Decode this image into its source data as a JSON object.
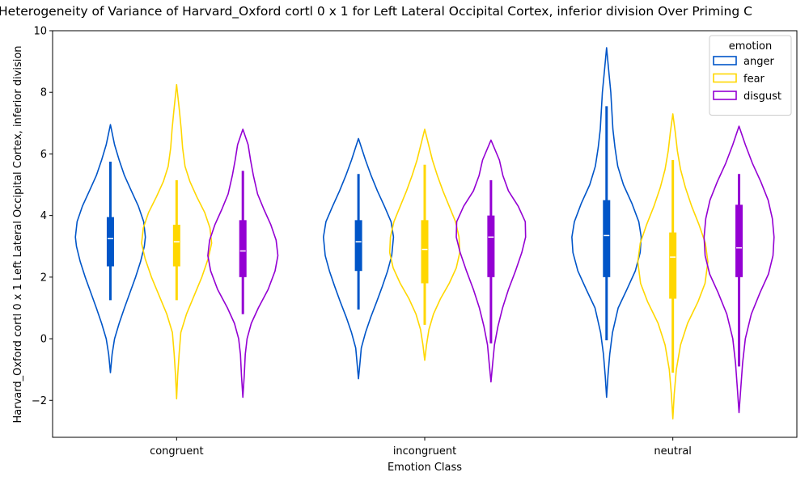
{
  "chart_data": {
    "type": "violin",
    "title": "Heterogeneity of Variance of Harvard_Oxford cortl 0 x 1 for Left Lateral Occipital Cortex, inferior division Over Priming C",
    "xlabel": "Emotion Class",
    "ylabel": "Harvard_Oxford cortl 0 x 1 Left Lateral Occipital Cortex, inferior division",
    "ylim": [
      -3.2,
      10
    ],
    "yticks": [
      "−2",
      "0",
      "2",
      "4",
      "6",
      "8",
      "10"
    ],
    "categories": [
      "congruent",
      "incongruent",
      "neutral"
    ],
    "grid": false,
    "legend": {
      "title": "emotion",
      "position": "top-right"
    },
    "series": [
      {
        "name": "anger",
        "color": "#0055c8",
        "violins": [
          {
            "min": -1.1,
            "max": 6.95,
            "whisker_low": 1.25,
            "whisker_high": 5.75,
            "q1": 2.35,
            "median": 3.25,
            "q3": 3.95,
            "profile": [
              [
                -1.1,
                0
              ],
              [
                -0.5,
                0.05
              ],
              [
                0,
                0.12
              ],
              [
                0.5,
                0.25
              ],
              [
                1,
                0.4
              ],
              [
                1.5,
                0.56
              ],
              [
                2,
                0.72
              ],
              [
                2.5,
                0.86
              ],
              [
                3,
                0.97
              ],
              [
                3.3,
                1
              ],
              [
                3.8,
                0.95
              ],
              [
                4.3,
                0.8
              ],
              [
                4.8,
                0.6
              ],
              [
                5.3,
                0.4
              ],
              [
                5.8,
                0.25
              ],
              [
                6.3,
                0.12
              ],
              [
                6.95,
                0
              ]
            ]
          },
          {
            "min": -1.3,
            "max": 6.5,
            "whisker_low": 0.95,
            "whisker_high": 5.35,
            "q1": 2.2,
            "median": 3.15,
            "q3": 3.85,
            "profile": [
              [
                -1.3,
                0
              ],
              [
                -0.8,
                0.04
              ],
              [
                -0.3,
                0.08
              ],
              [
                0.2,
                0.2
              ],
              [
                0.7,
                0.35
              ],
              [
                1.2,
                0.52
              ],
              [
                1.7,
                0.68
              ],
              [
                2.2,
                0.83
              ],
              [
                2.7,
                0.95
              ],
              [
                3.3,
                1
              ],
              [
                3.8,
                0.93
              ],
              [
                4.3,
                0.74
              ],
              [
                4.8,
                0.54
              ],
              [
                5.3,
                0.36
              ],
              [
                5.8,
                0.2
              ],
              [
                6.5,
                0
              ]
            ]
          },
          {
            "min": -1.9,
            "max": 9.45,
            "whisker_low": -0.05,
            "whisker_high": 7.55,
            "q1": 2.0,
            "median": 3.35,
            "q3": 4.5,
            "profile": [
              [
                -1.9,
                0
              ],
              [
                -1.2,
                0.04
              ],
              [
                -0.5,
                0.09
              ],
              [
                0.2,
                0.17
              ],
              [
                1,
                0.33
              ],
              [
                1.6,
                0.58
              ],
              [
                2.2,
                0.82
              ],
              [
                2.8,
                0.96
              ],
              [
                3.3,
                0.99
              ],
              [
                3.8,
                0.92
              ],
              [
                4.4,
                0.72
              ],
              [
                5,
                0.48
              ],
              [
                5.6,
                0.32
              ],
              [
                6.2,
                0.24
              ],
              [
                6.8,
                0.18
              ],
              [
                7.4,
                0.15
              ],
              [
                8,
                0.12
              ],
              [
                8.6,
                0.07
              ],
              [
                9.45,
                0
              ]
            ]
          }
        ]
      },
      {
        "name": "fear",
        "color": "#ffd700",
        "violins": [
          {
            "min": -1.95,
            "max": 8.25,
            "whisker_low": 1.25,
            "whisker_high": 5.15,
            "q1": 2.35,
            "median": 3.15,
            "q3": 3.7,
            "profile": [
              [
                -1.95,
                0
              ],
              [
                -1.2,
                0.03
              ],
              [
                -0.5,
                0.07
              ],
              [
                0.2,
                0.12
              ],
              [
                0.8,
                0.28
              ],
              [
                1.4,
                0.5
              ],
              [
                2,
                0.72
              ],
              [
                2.6,
                0.9
              ],
              [
                3.1,
                1
              ],
              [
                3.6,
                0.95
              ],
              [
                4.1,
                0.8
              ],
              [
                4.6,
                0.58
              ],
              [
                5.1,
                0.38
              ],
              [
                5.6,
                0.24
              ],
              [
                6.2,
                0.17
              ],
              [
                6.8,
                0.13
              ],
              [
                7.4,
                0.08
              ],
              [
                8.25,
                0
              ]
            ]
          },
          {
            "min": -0.7,
            "max": 6.8,
            "whisker_low": 0.45,
            "whisker_high": 5.65,
            "q1": 1.8,
            "median": 2.9,
            "q3": 3.85,
            "profile": [
              [
                -0.7,
                0
              ],
              [
                -0.2,
                0.05
              ],
              [
                0.3,
                0.12
              ],
              [
                0.8,
                0.25
              ],
              [
                1.3,
                0.45
              ],
              [
                1.8,
                0.7
              ],
              [
                2.3,
                0.9
              ],
              [
                2.8,
                1
              ],
              [
                3.3,
                0.98
              ],
              [
                3.8,
                0.88
              ],
              [
                4.3,
                0.7
              ],
              [
                4.8,
                0.52
              ],
              [
                5.3,
                0.36
              ],
              [
                5.8,
                0.22
              ],
              [
                6.8,
                0
              ]
            ]
          },
          {
            "min": -2.6,
            "max": 7.3,
            "whisker_low": -1.1,
            "whisker_high": 5.8,
            "q1": 1.3,
            "median": 2.65,
            "q3": 3.45,
            "profile": [
              [
                -2.6,
                0
              ],
              [
                -1.8,
                0.04
              ],
              [
                -1,
                0.1
              ],
              [
                -0.2,
                0.22
              ],
              [
                0.5,
                0.42
              ],
              [
                1.2,
                0.72
              ],
              [
                1.8,
                0.92
              ],
              [
                2.5,
                1
              ],
              [
                3.1,
                0.93
              ],
              [
                3.7,
                0.75
              ],
              [
                4.3,
                0.54
              ],
              [
                4.9,
                0.36
              ],
              [
                5.5,
                0.22
              ],
              [
                6.1,
                0.13
              ],
              [
                6.7,
                0.07
              ],
              [
                7.3,
                0
              ]
            ]
          }
        ]
      },
      {
        "name": "disgust",
        "color": "#9400d3",
        "violins": [
          {
            "min": -1.9,
            "max": 6.8,
            "whisker_low": 0.8,
            "whisker_high": 5.45,
            "q1": 2.0,
            "median": 2.85,
            "q3": 3.85,
            "profile": [
              [
                -1.9,
                0
              ],
              [
                -1.2,
                0.04
              ],
              [
                -0.5,
                0.07
              ],
              [
                0,
                0.12
              ],
              [
                0.5,
                0.24
              ],
              [
                1,
                0.44
              ],
              [
                1.6,
                0.72
              ],
              [
                2.2,
                0.92
              ],
              [
                2.7,
                1
              ],
              [
                3.2,
                0.95
              ],
              [
                3.7,
                0.8
              ],
              [
                4.2,
                0.6
              ],
              [
                4.7,
                0.42
              ],
              [
                5.3,
                0.3
              ],
              [
                5.8,
                0.22
              ],
              [
                6.3,
                0.15
              ],
              [
                6.8,
                0
              ]
            ]
          },
          {
            "min": -1.4,
            "max": 6.45,
            "whisker_low": -0.15,
            "whisker_high": 5.15,
            "q1": 2.0,
            "median": 3.3,
            "q3": 4.0,
            "profile": [
              [
                -1.4,
                0
              ],
              [
                -0.8,
                0.05
              ],
              [
                -0.2,
                0.1
              ],
              [
                0.4,
                0.2
              ],
              [
                1,
                0.33
              ],
              [
                1.6,
                0.5
              ],
              [
                2.2,
                0.7
              ],
              [
                2.8,
                0.88
              ],
              [
                3.3,
                0.99
              ],
              [
                3.8,
                0.98
              ],
              [
                4.3,
                0.78
              ],
              [
                4.8,
                0.5
              ],
              [
                5.3,
                0.34
              ],
              [
                5.8,
                0.24
              ],
              [
                6.45,
                0
              ]
            ]
          },
          {
            "min": -2.4,
            "max": 6.9,
            "whisker_low": -0.9,
            "whisker_high": 5.35,
            "q1": 2.0,
            "median": 2.95,
            "q3": 4.35,
            "profile": [
              [
                -2.4,
                0
              ],
              [
                -1.6,
                0.05
              ],
              [
                -0.8,
                0.1
              ],
              [
                0,
                0.18
              ],
              [
                0.8,
                0.35
              ],
              [
                1.5,
                0.6
              ],
              [
                2.1,
                0.84
              ],
              [
                2.7,
                0.97
              ],
              [
                3.3,
                1
              ],
              [
                3.9,
                0.95
              ],
              [
                4.5,
                0.83
              ],
              [
                5.1,
                0.62
              ],
              [
                5.7,
                0.38
              ],
              [
                6.3,
                0.18
              ],
              [
                6.9,
                0
              ]
            ]
          }
        ]
      }
    ]
  }
}
